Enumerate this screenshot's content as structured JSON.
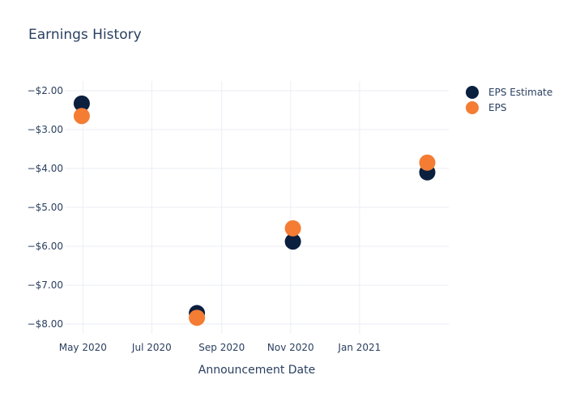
{
  "chart_data": {
    "type": "scatter",
    "title": "Earnings History",
    "xlabel": "Announcement Date",
    "ylabel": "",
    "x_tick_labels": [
      "May 2020",
      "Jul 2020",
      "Sep 2020",
      "Nov 2020",
      "Jan 2021"
    ],
    "x_ticks": [
      "2020-05-01",
      "2020-07-01",
      "2020-09-01",
      "2020-11-01",
      "2021-01-01"
    ],
    "xlim": [
      "2020-04-15",
      "2021-03-21"
    ],
    "y_tick_labels": [
      "−$8.00",
      "−$7.00",
      "−$6.00",
      "−$5.00",
      "−$4.00",
      "−$3.00",
      "−$2.00"
    ],
    "y_ticks": [
      -8,
      -7,
      -6,
      -5,
      -4,
      -3,
      -2
    ],
    "ylim": [
      -8.25,
      -1.75
    ],
    "grid": true,
    "legend_position": "top-right",
    "series": [
      {
        "name": "EPS Estimate",
        "color": "#0b1f3f",
        "points": [
          {
            "x": "2020-04-30",
            "y": -2.33
          },
          {
            "x": "2020-08-10",
            "y": -7.72
          },
          {
            "x": "2020-11-03",
            "y": -5.88
          },
          {
            "x": "2021-03-02",
            "y": -4.1
          }
        ]
      },
      {
        "name": "EPS",
        "color": "#f47c33",
        "points": [
          {
            "x": "2020-04-30",
            "y": -2.65
          },
          {
            "x": "2020-08-10",
            "y": -7.84
          },
          {
            "x": "2020-11-03",
            "y": -5.54
          },
          {
            "x": "2021-03-02",
            "y": -3.85
          }
        ]
      }
    ]
  }
}
